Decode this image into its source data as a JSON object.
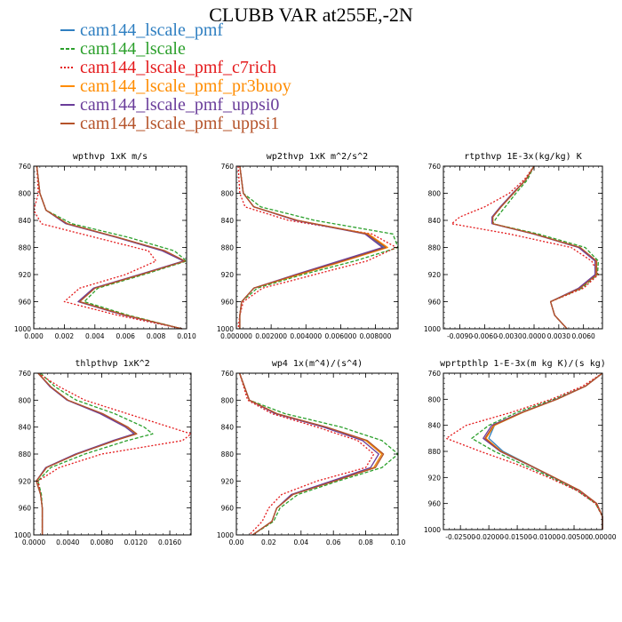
{
  "figure": {
    "title": "CLUBB VAR at255E,-2N",
    "legend": [
      {
        "label": "cam144_lscale_pmf",
        "color": "#2f7fc1",
        "dash": ""
      },
      {
        "label": "cam144_lscale",
        "color": "#2ca02c",
        "dash": "4,2"
      },
      {
        "label": "cam144_lscale_pmf_c7rich",
        "color": "#e41a1c",
        "dash": "2,2"
      },
      {
        "label": "cam144_lscale_pmf_pr3buoy",
        "color": "#ff8c00",
        "dash": ""
      },
      {
        "label": "cam144_lscale_pmf_uppsi0",
        "color": "#6a3d9a",
        "dash": ""
      },
      {
        "label": "cam144_lscale_pmf_uppsi1",
        "color": "#b5532a",
        "dash": ""
      }
    ]
  },
  "chart_data": [
    {
      "type": "line",
      "title": "wpthvp  1xK m/s",
      "xlim": [
        0,
        0.01
      ],
      "xticks": [
        0,
        0.002,
        0.004,
        0.006,
        0.008,
        0.01
      ],
      "xticklabels": [
        "0.000",
        "0.002",
        "0.004",
        "0.006",
        "0.008",
        "0.010"
      ],
      "ylim": [
        760,
        1000
      ],
      "yticks": [
        760,
        800,
        840,
        880,
        920,
        960,
        1000
      ],
      "y": [
        760,
        800,
        825,
        845,
        865,
        885,
        900,
        920,
        940,
        960,
        980,
        1000
      ],
      "series": [
        {
          "name": "cam144_lscale_pmf",
          "values": [
            0.0002,
            0.0004,
            0.0008,
            0.0022,
            0.0055,
            0.0085,
            0.0098,
            0.007,
            0.004,
            0.003,
            0.006,
            0.0097
          ]
        },
        {
          "name": "cam144_lscale",
          "values": [
            0.0002,
            0.0004,
            0.0008,
            0.0025,
            0.0062,
            0.0092,
            0.01,
            0.0072,
            0.0042,
            0.0033,
            0.0062,
            0.0097
          ]
        },
        {
          "name": "cam144_lscale_pmf_c7rich",
          "values": [
            0.0002,
            0.0003,
            0.0,
            0.0005,
            0.004,
            0.0075,
            0.008,
            0.006,
            0.003,
            0.002,
            0.0055,
            0.0097
          ]
        },
        {
          "name": "cam144_lscale_pmf_pr3buoy",
          "values": [
            0.0002,
            0.0004,
            0.0008,
            0.0022,
            0.0055,
            0.0085,
            0.0098,
            0.007,
            0.004,
            0.003,
            0.006,
            0.0097
          ]
        },
        {
          "name": "cam144_lscale_pmf_uppsi0",
          "values": [
            0.0002,
            0.0004,
            0.0008,
            0.0021,
            0.0054,
            0.0084,
            0.0098,
            0.0069,
            0.0039,
            0.0029,
            0.0059,
            0.0097
          ]
        },
        {
          "name": "cam144_lscale_pmf_uppsi1",
          "values": [
            0.0002,
            0.0004,
            0.0008,
            0.0022,
            0.0055,
            0.0086,
            0.0099,
            0.007,
            0.004,
            0.003,
            0.006,
            0.0097
          ]
        }
      ]
    },
    {
      "type": "line",
      "title": "wp2thvp  1xK m^2/s^2",
      "xlim": [
        0,
        0.0093
      ],
      "xticks": [
        0,
        0.002,
        0.004,
        0.006,
        0.008
      ],
      "xticklabels": [
        "0.000000",
        "0.002000",
        "0.004000",
        "0.006000",
        "0.008000"
      ],
      "ylim": [
        760,
        1000
      ],
      "yticks": [
        760,
        800,
        840,
        880,
        920,
        960,
        1000
      ],
      "y": [
        760,
        800,
        820,
        840,
        860,
        880,
        900,
        920,
        940,
        960,
        980,
        1000
      ],
      "series": [
        {
          "name": "cam144_lscale_pmf",
          "values": [
            0.0002,
            0.0004,
            0.001,
            0.0035,
            0.0075,
            0.0085,
            0.006,
            0.0035,
            0.001,
            0.0003,
            0.0002,
            0.0002
          ]
        },
        {
          "name": "cam144_lscale",
          "values": [
            0.0002,
            0.0004,
            0.0014,
            0.0045,
            0.009,
            0.0093,
            0.0068,
            0.0038,
            0.0012,
            0.0003,
            0.0002,
            0.0002
          ]
        },
        {
          "name": "cam144_lscale_pmf_c7rich",
          "values": [
            0.0001,
            0.0002,
            0.0005,
            0.003,
            0.0078,
            0.0092,
            0.0075,
            0.0045,
            0.0015,
            0.0004,
            0.0002,
            0.0001
          ]
        },
        {
          "name": "cam144_lscale_pmf_pr3buoy",
          "values": [
            0.0002,
            0.0004,
            0.001,
            0.0035,
            0.0076,
            0.0087,
            0.0062,
            0.0036,
            0.001,
            0.0003,
            0.0002,
            0.0002
          ]
        },
        {
          "name": "cam144_lscale_pmf_uppsi0",
          "values": [
            0.0002,
            0.0004,
            0.001,
            0.0034,
            0.0074,
            0.0084,
            0.0059,
            0.0034,
            0.001,
            0.0003,
            0.0002,
            0.0002
          ]
        },
        {
          "name": "cam144_lscale_pmf_uppsi1",
          "values": [
            0.0002,
            0.0004,
            0.001,
            0.0035,
            0.0075,
            0.0086,
            0.0061,
            0.0035,
            0.001,
            0.0003,
            0.0002,
            0.0002
          ]
        }
      ]
    },
    {
      "type": "line",
      "title": "rtpthvp  1E-3x(kg/kg) K",
      "xlim": [
        -0.011,
        0.0083
      ],
      "xticks": [
        -0.009,
        -0.006,
        -0.003,
        0.0,
        0.003,
        0.006
      ],
      "xticklabels": [
        "-0.0090",
        "-0.0060",
        "-0.0030",
        "0.0000",
        "0.0030",
        "0.0060"
      ],
      "ylim": [
        760,
        1000
      ],
      "yticks": [
        760,
        800,
        840,
        880,
        920,
        960,
        1000
      ],
      "y": [
        760,
        780,
        800,
        820,
        835,
        845,
        860,
        880,
        900,
        920,
        940,
        960,
        980,
        1000
      ],
      "series": [
        {
          "name": "cam144_lscale_pmf",
          "values": [
            0.0,
            -0.001,
            -0.0025,
            -0.004,
            -0.005,
            -0.005,
            0.0,
            0.0055,
            0.0075,
            0.0075,
            0.0055,
            0.002,
            0.0025,
            0.004
          ]
        },
        {
          "name": "cam144_lscale",
          "values": [
            0.0,
            -0.0008,
            -0.0022,
            -0.0035,
            -0.0045,
            -0.005,
            0.0005,
            0.0062,
            0.0078,
            0.0077,
            0.0058,
            0.002,
            0.0025,
            0.004
          ]
        },
        {
          "name": "cam144_lscale_pmf_c7rich",
          "values": [
            0.0,
            -0.0012,
            -0.003,
            -0.006,
            -0.009,
            -0.01,
            -0.003,
            0.0045,
            0.007,
            0.0078,
            0.006,
            0.002,
            0.0025,
            0.004
          ]
        },
        {
          "name": "cam144_lscale_pmf_pr3buoy",
          "values": [
            0.0,
            -0.001,
            -0.0025,
            -0.004,
            -0.005,
            -0.005,
            0.0,
            0.0055,
            0.0075,
            0.0075,
            0.0055,
            0.002,
            0.0025,
            0.004
          ]
        },
        {
          "name": "cam144_lscale_pmf_uppsi0",
          "values": [
            0.0,
            -0.001,
            -0.0026,
            -0.0041,
            -0.0051,
            -0.0051,
            -0.0001,
            0.0054,
            0.0074,
            0.0074,
            0.0054,
            0.002,
            0.0025,
            0.004
          ]
        },
        {
          "name": "cam144_lscale_pmf_uppsi1",
          "values": [
            0.0,
            -0.001,
            -0.0025,
            -0.004,
            -0.005,
            -0.005,
            0.0,
            0.0056,
            0.0076,
            0.0076,
            0.0056,
            0.002,
            0.0025,
            0.004
          ]
        }
      ]
    },
    {
      "type": "line",
      "title": "thlpthvp  1xK^2",
      "xlim": [
        0,
        0.0185
      ],
      "xticks": [
        0,
        0.004,
        0.008,
        0.012,
        0.016
      ],
      "xticklabels": [
        "0.0000",
        "0.0040",
        "0.0080",
        "0.0120",
        "0.0160"
      ],
      "ylim": [
        760,
        1000
      ],
      "yticks": [
        760,
        800,
        840,
        880,
        920,
        960,
        1000
      ],
      "y": [
        760,
        780,
        800,
        820,
        840,
        850,
        860,
        880,
        900,
        920,
        940,
        960,
        980,
        1000
      ],
      "series": [
        {
          "name": "cam144_lscale_pmf",
          "values": [
            0.0005,
            0.002,
            0.004,
            0.008,
            0.011,
            0.012,
            0.0095,
            0.005,
            0.0015,
            0.0003,
            0.0008,
            0.001,
            0.001,
            0.001
          ]
        },
        {
          "name": "cam144_lscale",
          "values": [
            0.0008,
            0.0025,
            0.005,
            0.0095,
            0.013,
            0.014,
            0.011,
            0.006,
            0.002,
            0.0005,
            0.0009,
            0.001,
            0.001,
            0.001
          ]
        },
        {
          "name": "cam144_lscale_pmf_c7rich",
          "values": [
            0.0005,
            0.003,
            0.006,
            0.011,
            0.016,
            0.0185,
            0.0175,
            0.008,
            0.003,
            0.0005,
            0.0008,
            0.001,
            0.001,
            0.001
          ]
        },
        {
          "name": "cam144_lscale_pmf_pr3buoy",
          "values": [
            0.0005,
            0.002,
            0.004,
            0.008,
            0.011,
            0.0121,
            0.0096,
            0.005,
            0.0015,
            0.0003,
            0.0008,
            0.001,
            0.001,
            0.001
          ]
        },
        {
          "name": "cam144_lscale_pmf_uppsi0",
          "values": [
            0.0005,
            0.0019,
            0.0039,
            0.0078,
            0.0108,
            0.0118,
            0.0093,
            0.0049,
            0.0014,
            0.0003,
            0.0008,
            0.001,
            0.001,
            0.001
          ]
        },
        {
          "name": "cam144_lscale_pmf_uppsi1",
          "values": [
            0.0005,
            0.002,
            0.004,
            0.0081,
            0.0111,
            0.0121,
            0.0096,
            0.0051,
            0.0015,
            0.0003,
            0.0008,
            0.001,
            0.001,
            0.001
          ]
        }
      ]
    },
    {
      "type": "line",
      "title": "wp4  1x(m^4)/(s^4)",
      "xlim": [
        0,
        0.1
      ],
      "xticks": [
        0,
        0.02,
        0.04,
        0.06,
        0.08,
        0.1
      ],
      "xticklabels": [
        "0.00",
        "0.02",
        "0.04",
        "0.06",
        "0.08",
        "0.10"
      ],
      "ylim": [
        760,
        1000
      ],
      "yticks": [
        760,
        800,
        840,
        880,
        920,
        960,
        1000
      ],
      "y": [
        760,
        800,
        820,
        840,
        860,
        880,
        900,
        920,
        940,
        960,
        980,
        1000
      ],
      "series": [
        {
          "name": "cam144_lscale_pmf",
          "values": [
            0.002,
            0.008,
            0.025,
            0.055,
            0.08,
            0.09,
            0.085,
            0.06,
            0.035,
            0.025,
            0.022,
            0.01
          ]
        },
        {
          "name": "cam144_lscale",
          "values": [
            0.002,
            0.008,
            0.03,
            0.065,
            0.09,
            0.1,
            0.09,
            0.063,
            0.038,
            0.027,
            0.023,
            0.01
          ]
        },
        {
          "name": "cam144_lscale_pmf_c7rich",
          "values": [
            0.002,
            0.007,
            0.022,
            0.05,
            0.075,
            0.085,
            0.08,
            0.05,
            0.028,
            0.02,
            0.016,
            0.008
          ]
        },
        {
          "name": "cam144_lscale_pmf_pr3buoy",
          "values": [
            0.002,
            0.008,
            0.025,
            0.055,
            0.08,
            0.09,
            0.085,
            0.06,
            0.035,
            0.025,
            0.022,
            0.01
          ]
        },
        {
          "name": "cam144_lscale_pmf_uppsi0",
          "values": [
            0.002,
            0.008,
            0.024,
            0.054,
            0.078,
            0.088,
            0.083,
            0.059,
            0.034,
            0.025,
            0.022,
            0.01
          ]
        },
        {
          "name": "cam144_lscale_pmf_uppsi1",
          "values": [
            0.002,
            0.008,
            0.025,
            0.056,
            0.081,
            0.091,
            0.086,
            0.061,
            0.035,
            0.025,
            0.022,
            0.01
          ]
        }
      ]
    },
    {
      "type": "line",
      "title": "wprtpthlp  1-E-3x(m kg K)/(s kg)",
      "xlim": [
        -0.028,
        0.0
      ],
      "xticks": [
        -0.025,
        -0.02,
        -0.015,
        -0.01,
        -0.005,
        0.0
      ],
      "xticklabels": [
        "-0.02500",
        "-0.02000",
        "-0.01500",
        "-0.01000",
        "-0.00500",
        "0.00000"
      ],
      "ylim": [
        760,
        1000
      ],
      "yticks": [
        760,
        800,
        840,
        880,
        920,
        960,
        1000
      ],
      "y": [
        760,
        780,
        800,
        820,
        840,
        860,
        880,
        900,
        920,
        940,
        960,
        980,
        1000
      ],
      "series": [
        {
          "name": "cam144_lscale_pmf",
          "values": [
            0.0,
            -0.003,
            -0.008,
            -0.014,
            -0.019,
            -0.02,
            -0.0175,
            -0.013,
            -0.0085,
            -0.004,
            -0.001,
            0.0,
            0.0
          ]
        },
        {
          "name": "cam144_lscale",
          "values": [
            0.0,
            -0.003,
            -0.0085,
            -0.015,
            -0.02,
            -0.023,
            -0.019,
            -0.014,
            -0.009,
            -0.0045,
            -0.0012,
            0.0,
            0.0
          ]
        },
        {
          "name": "cam144_lscale_pmf_c7rich",
          "values": [
            0.0,
            -0.0035,
            -0.009,
            -0.016,
            -0.024,
            -0.0275,
            -0.0215,
            -0.015,
            -0.0095,
            -0.0045,
            -0.0012,
            0.0,
            0.0
          ]
        },
        {
          "name": "cam144_lscale_pmf_pr3buoy",
          "values": [
            0.0,
            -0.003,
            -0.008,
            -0.014,
            -0.019,
            -0.0205,
            -0.0178,
            -0.0131,
            -0.0085,
            -0.004,
            -0.001,
            0.0,
            0.0
          ]
        },
        {
          "name": "cam144_lscale_pmf_uppsi0",
          "values": [
            0.0,
            -0.003,
            -0.0081,
            -0.0142,
            -0.0195,
            -0.021,
            -0.018,
            -0.0132,
            -0.0086,
            -0.0041,
            -0.001,
            0.0,
            0.0
          ]
        },
        {
          "name": "cam144_lscale_pmf_uppsi1",
          "values": [
            0.0,
            -0.003,
            -0.008,
            -0.0141,
            -0.0192,
            -0.0207,
            -0.0179,
            -0.0131,
            -0.0085,
            -0.004,
            -0.001,
            0.0,
            0.0
          ]
        }
      ]
    }
  ]
}
